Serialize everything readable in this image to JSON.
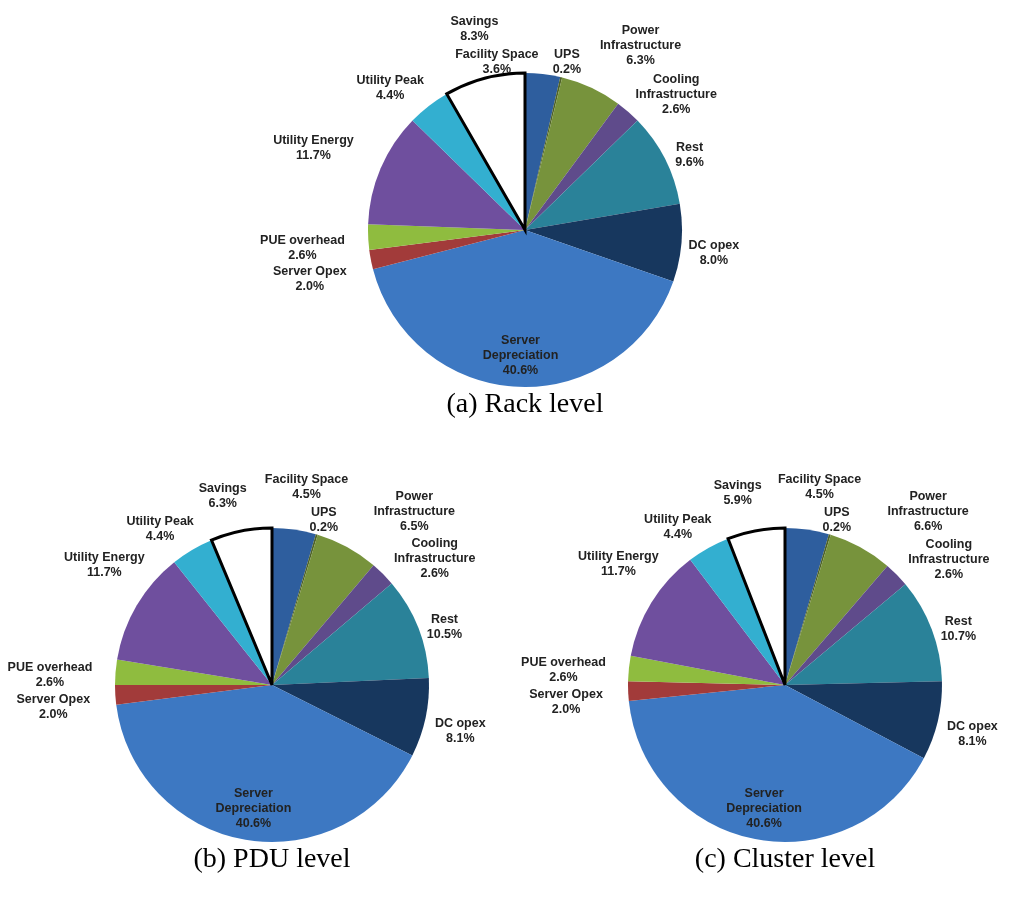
{
  "chart_data": [
    {
      "type": "pie",
      "title": "(a) Rack level",
      "categories": [
        "Facility Space",
        "UPS",
        "Power Infrastructure",
        "Cooling Infrastructure",
        "Rest",
        "DC opex",
        "Server Depreciation",
        "Server Opex",
        "PUE overhead",
        "Utility Energy",
        "Utility Peak",
        "Savings"
      ],
      "values": [
        3.6,
        0.2,
        6.3,
        2.6,
        9.6,
        8.0,
        40.6,
        2.0,
        2.6,
        11.7,
        4.4,
        8.3
      ],
      "value_labels": [
        "3.6%",
        "0.2%",
        "6.3%",
        "2.6%",
        "9.6%",
        "8.0%",
        "40.6%",
        "2.0%",
        "2.6%",
        "11.7%",
        "4.4%",
        "8.3%"
      ],
      "colors": [
        "#2e5e9e",
        "#4f6228",
        "#77933c",
        "#5f4b8b",
        "#2a8299",
        "#17375e",
        "#3d78c2",
        "#a23b3a",
        "#8fbc3f",
        "#6f4f9e",
        "#33afd0",
        "#ffffff"
      ]
    },
    {
      "type": "pie",
      "title": "(b) PDU level",
      "categories": [
        "Facility Space",
        "UPS",
        "Power Infrastructure",
        "Cooling Infrastructure",
        "Rest",
        "DC opex",
        "Server Depreciation",
        "Server Opex",
        "PUE overhead",
        "Utility Energy",
        "Utility Peak",
        "Savings"
      ],
      "values": [
        4.5,
        0.2,
        6.5,
        2.6,
        10.5,
        8.1,
        40.6,
        2.0,
        2.6,
        11.7,
        4.4,
        6.3
      ],
      "value_labels": [
        "4.5%",
        "0.2%",
        "6.5%",
        "2.6%",
        "10.5%",
        "8.1%",
        "40.6%",
        "2.0%",
        "2.6%",
        "11.7%",
        "4.4%",
        "6.3%"
      ],
      "colors": [
        "#2e5e9e",
        "#4f6228",
        "#77933c",
        "#5f4b8b",
        "#2a8299",
        "#17375e",
        "#3d78c2",
        "#a23b3a",
        "#8fbc3f",
        "#6f4f9e",
        "#33afd0",
        "#ffffff"
      ]
    },
    {
      "type": "pie",
      "title": "(c) Cluster level",
      "categories": [
        "Facility Space",
        "UPS",
        "Power Infrastructure",
        "Cooling Infrastructure",
        "Rest",
        "DC opex",
        "Server Depreciation",
        "Server Opex",
        "PUE overhead",
        "Utility Energy",
        "Utility Peak",
        "Savings"
      ],
      "values": [
        4.5,
        0.2,
        6.6,
        2.6,
        10.7,
        8.1,
        40.6,
        2.0,
        2.6,
        11.7,
        4.4,
        5.9
      ],
      "value_labels": [
        "4.5%",
        "0.2%",
        "6.6%",
        "2.6%",
        "10.7%",
        "8.1%",
        "40.6%",
        "2.0%",
        "2.6%",
        "11.7%",
        "4.4%",
        "5.9%"
      ],
      "colors": [
        "#2e5e9e",
        "#4f6228",
        "#77933c",
        "#5f4b8b",
        "#2a8299",
        "#17375e",
        "#3d78c2",
        "#a23b3a",
        "#8fbc3f",
        "#6f4f9e",
        "#33afd0",
        "#ffffff"
      ]
    }
  ]
}
